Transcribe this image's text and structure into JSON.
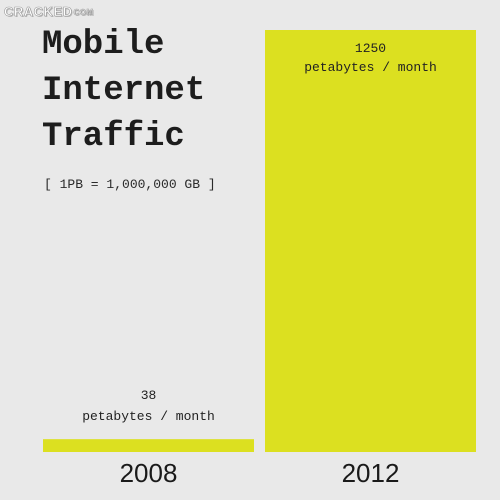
{
  "logo": {
    "brand": "CRACKED",
    "suffix": "COM"
  },
  "title_lines": [
    "Mobile",
    "Internet",
    "Traffic"
  ],
  "note": "[ 1PB = 1,000,000 GB ]",
  "colors": {
    "bar": "#dce020",
    "background": "#e9e9e9",
    "text": "#1b1b1b"
  },
  "chart_data": {
    "type": "bar",
    "categories": [
      "2008",
      "2012"
    ],
    "values": [
      38,
      1250
    ],
    "unit": "petabytes / month",
    "data_labels": [
      "38",
      "1250"
    ],
    "title": "Mobile Internet Traffic",
    "xlabel": "",
    "ylabel": "",
    "ylim": [
      0,
      1250
    ],
    "grid": false,
    "legend": "none"
  }
}
